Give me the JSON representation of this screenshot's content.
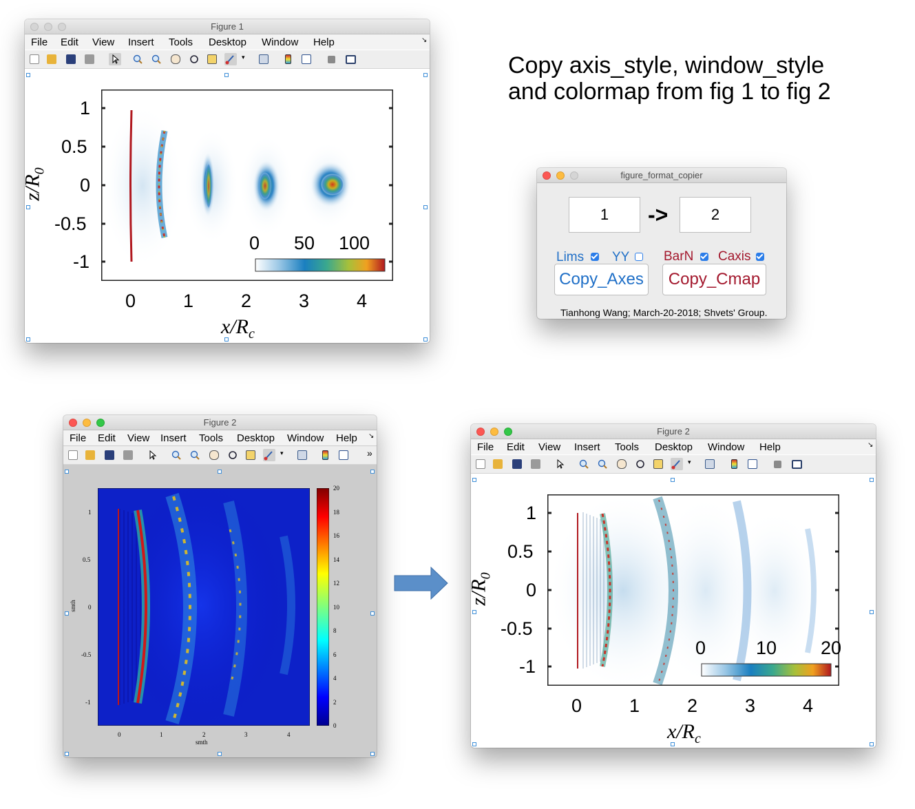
{
  "annotation": {
    "line1": "Copy axis_style, window_style",
    "line2": "and colormap from fig 1 to fig 2"
  },
  "menu": [
    "File",
    "Edit",
    "View",
    "Insert",
    "Tools",
    "Desktop",
    "Window",
    "Help"
  ],
  "figure1": {
    "title": "Figure 1",
    "xticks": [
      "0",
      "1",
      "2",
      "3",
      "4"
    ],
    "yticks": [
      "1",
      "0.5",
      "0",
      "-0.5",
      "-1"
    ],
    "xlabel": "x/R",
    "xlabel_sub": "c",
    "ylabel": "z/R",
    "ylabel_sub": "0",
    "colorbar_ticks": [
      "0",
      "50",
      "100"
    ]
  },
  "copier": {
    "title": "figure_format_copier",
    "from_value": "1",
    "arrow": "->",
    "to_value": "2",
    "lims_label": "Lims",
    "yy_label": "YY",
    "barn_label": "BarN",
    "caxis_label": "Caxis",
    "copy_axes_label": "Copy_Axes",
    "copy_cmap_label": "Copy_Cmap",
    "credit": "Tianhong Wang; March-20-2018; Shvets' Group.",
    "checkboxes": {
      "lims": true,
      "yy": false,
      "barn": true,
      "caxis": true
    },
    "colors": {
      "blue": "#1f6fc7",
      "red": "#a3182d"
    }
  },
  "figure2_before": {
    "title": "Figure 2",
    "xticks": [
      "0",
      "1",
      "2",
      "3",
      "4"
    ],
    "yticks": [
      "1",
      "0.5",
      "0",
      "-0.5",
      "-1"
    ],
    "xlabel": "smth",
    "ylabel": "smth",
    "colorbar_ticks": [
      "20",
      "18",
      "16",
      "14",
      "12",
      "10",
      "8",
      "6",
      "4",
      "2",
      "0"
    ],
    "toolbar_more": "»"
  },
  "figure2_after": {
    "title": "Figure 2",
    "xticks": [
      "0",
      "1",
      "2",
      "3",
      "4"
    ],
    "yticks": [
      "1",
      "0.5",
      "0",
      "-0.5",
      "-1"
    ],
    "xlabel": "x/R",
    "xlabel_sub": "c",
    "ylabel": "z/R",
    "ylabel_sub": "0",
    "colorbar_ticks": [
      "0",
      "10",
      "20"
    ]
  },
  "colors": {
    "arrow": "#5b8fc9",
    "jet_dark": "#00008f",
    "parula_light": "#e8f1f8",
    "plot_red": "#b0181f"
  }
}
